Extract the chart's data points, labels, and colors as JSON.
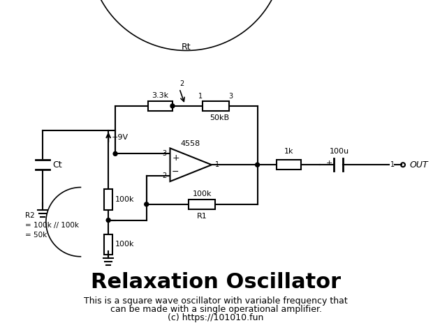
{
  "title": "Relaxation Oscillator",
  "subtitle_line1": "This is a square wave oscillator with variable frequency that",
  "subtitle_line2": "can be made with a single operational amplifier.",
  "subtitle_line3": "(c) https://101010.fun",
  "bg_color": "#ffffff",
  "line_color": "#000000",
  "text_color": "#000000",
  "component_labels": {
    "Ct": "Ct",
    "3.3k": "3.3k",
    "50kB": "50kB",
    "100k_R1": "100k",
    "R1": "R1",
    "1k": "1k",
    "100u": "100u",
    "100k_top": "100k",
    "100k_bot": "100k",
    "4558": "4558",
    "Rt": "Rt",
    "R2": "R2\n= 100k // 100k\n= 50k",
    "plus9V": "+9V",
    "OUT": "OUT"
  }
}
